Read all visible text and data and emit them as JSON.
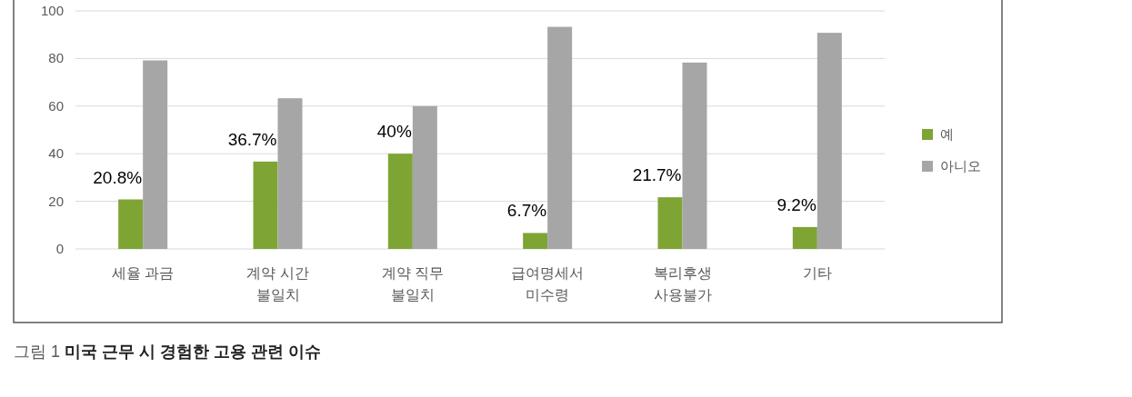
{
  "chart_data": {
    "type": "bar",
    "title": "그림 1 **미국 근무 시 경험한 고용 관련 이슈**",
    "categories": [
      "세율 과금",
      "계약 시간 불일치",
      "계약 직무 불일치",
      "급여명세서 미수령",
      "복리후생 사용불가",
      "기타"
    ],
    "series": [
      {
        "name": "예",
        "color": "#7ea534",
        "values": [
          20.8,
          36.7,
          40,
          6.7,
          21.7,
          9.2
        ],
        "value_labels": [
          "20.8%",
          "36.7%",
          "40%",
          "6.7%",
          "21.7%",
          "9.2%"
        ]
      },
      {
        "name": "아니오",
        "color": "#a6a6a6",
        "values": [
          79.2,
          63.3,
          60,
          93.3,
          78.3,
          90.8
        ]
      }
    ],
    "ylim": [
      0,
      100
    ],
    "yticks": [
      0,
      20,
      40,
      60,
      80,
      100
    ],
    "grid": "y",
    "legend": "right"
  }
}
